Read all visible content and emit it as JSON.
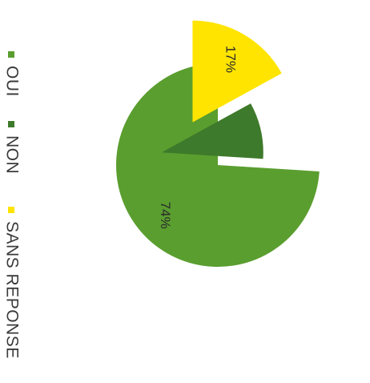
{
  "chart_data": {
    "type": "pie",
    "exploded": true,
    "text_orientation": "rotated 90° clockwise",
    "categories": [
      "OUI",
      "NON",
      "SANS REPONSE"
    ],
    "values": [
      74,
      9,
      17
    ],
    "slice_labels": [
      "74%",
      "",
      "17%"
    ],
    "colors": [
      "#5a9e2f",
      "#3e7a2b",
      "#ffe400"
    ],
    "legend": {
      "placement": "left",
      "entries": [
        "OUI",
        "NON",
        "SANS REPONSE"
      ]
    }
  }
}
